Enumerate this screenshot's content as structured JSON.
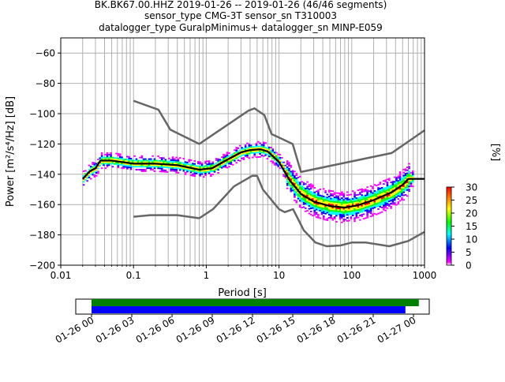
{
  "title_lines": [
    "BK.BK67.00.HHZ   2019-01-26 -- 2019-01-26  (46/46 segments)",
    "sensor_type CMG-3T sensor_sn T310003",
    "datalogger_type GuralpMinimus+ datalogger_sn MINP-E059"
  ],
  "chart_data": [
    {
      "type": "heatmap",
      "xlabel": "Period [s]",
      "ylabel": "Power [m²/s⁴/Hz] [dB]",
      "xscale": "log",
      "xlim": [
        0.01,
        1000
      ],
      "ylim": [
        -200,
        -50
      ],
      "x_ticks": [
        "0.01",
        "0.1",
        "1",
        "10",
        "100",
        "1000"
      ],
      "y_ticks": [
        "−200",
        "−180",
        "−160",
        "−140",
        "−120",
        "−100",
        "−80",
        "−60"
      ],
      "grid": true,
      "nlnm": {
        "period": [
          0.1,
          0.17,
          0.4,
          0.8,
          1.24,
          2.4,
          4.3,
          5,
          6,
          10,
          12,
          15.6,
          21.9,
          31.6,
          45,
          70,
          101,
          154,
          328,
          600,
          1000
        ],
        "power": [
          -168,
          -167,
          -167,
          -169,
          -163,
          -148,
          -141,
          -141,
          -150,
          -163,
          -165,
          -163,
          -177,
          -185,
          -187.5,
          -187,
          -185,
          -185,
          -187.5,
          -184,
          -178
        ]
      },
      "nhnm": {
        "period": [
          0.1,
          0.22,
          0.32,
          0.8,
          3.8,
          4.6,
          6.3,
          7.9,
          15.4,
          20,
          354,
          1000
        ],
        "power": [
          -91.5,
          -97.4,
          -110.5,
          -120,
          -98,
          -96.5,
          -101,
          -113.5,
          -120,
          -138.5,
          -126,
          -111
        ]
      },
      "mean_psd": {
        "period": [
          0.02,
          0.025,
          0.03,
          0.035,
          0.05,
          0.1,
          0.2,
          0.4,
          0.8,
          1.2,
          2,
          3,
          4,
          5.5,
          7,
          10,
          14,
          20,
          30,
          50,
          80,
          120,
          200,
          350,
          500,
          600,
          1000
        ],
        "power": [
          -143,
          -138,
          -136,
          -131,
          -131,
          -133,
          -133,
          -134,
          -137,
          -136,
          -130,
          -125.5,
          -124,
          -123.5,
          -125,
          -132,
          -144,
          -153,
          -158,
          -161,
          -162,
          -160.5,
          -157,
          -152,
          -147,
          -143,
          -143
        ]
      },
      "colorbar": {
        "label": "[%]",
        "min": 0,
        "max": 30,
        "ticks": [
          "0",
          "5",
          "10",
          "15",
          "20",
          "25",
          "30"
        ]
      }
    },
    {
      "type": "bar",
      "x_ticks": [
        "01-26 00",
        "01-26 03",
        "01-26 06",
        "01-26 09",
        "01-26 12",
        "01-26 15",
        "01-26 18",
        "01-26 21",
        "01-27 00"
      ],
      "xlim_hours": [
        0,
        24
      ],
      "series": [
        {
          "color": "#008000",
          "start_hour": 0,
          "end_hour": 24.4
        },
        {
          "color": "#0000ff",
          "start_hour": 0,
          "end_hour": 23.4
        }
      ]
    }
  ]
}
